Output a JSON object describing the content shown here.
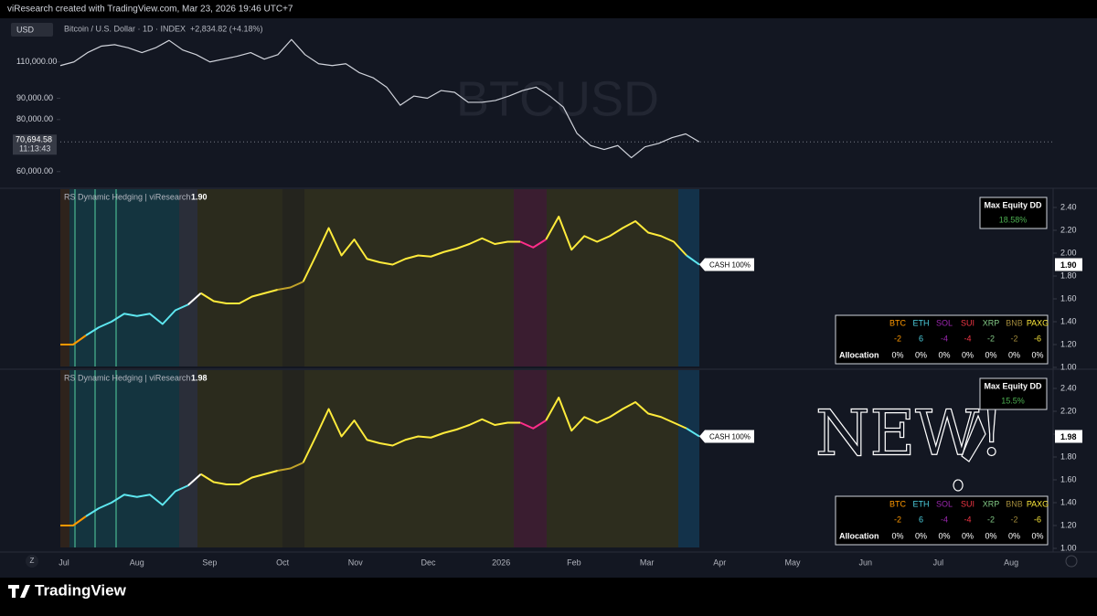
{
  "header": {
    "text": "viResearch created with TradingView.com, Mar 23, 2026 19:46 UTC+7"
  },
  "main_chart": {
    "type": "line",
    "currency": "USD",
    "symbol": "Bitcoin / U.S. Dollar · 1D · INDEX",
    "change": "+2,834.82 (+4.18%)",
    "watermark": "BTCUSD",
    "last_price": "70,694.58",
    "countdown": "11:13:43",
    "log_scale": true,
    "color": "#d1d4dc",
    "ylim": [
      55000,
      140000
    ],
    "yticks": [
      {
        "value": 60000,
        "label": "60,000.00"
      },
      {
        "value": 80000,
        "label": "80,000.00"
      },
      {
        "value": 90000,
        "label": "90,000.00"
      },
      {
        "value": 110000,
        "label": "110,000.00"
      }
    ],
    "values": [
      107800,
      110000,
      115800,
      120000,
      121000,
      118900,
      115800,
      118900,
      123900,
      117500,
      114500,
      110000,
      111700,
      113500,
      115800,
      111700,
      114500,
      124500,
      114500,
      108900,
      107800,
      108900,
      103600,
      100800,
      95700,
      86600,
      91100,
      90000,
      93900,
      93000,
      88000,
      88000,
      88900,
      91100,
      93900,
      95700,
      91100,
      85700,
      74100,
      69300,
      67800,
      69300,
      64800,
      68800,
      70100,
      72400,
      73900,
      70700
    ]
  },
  "panels": [
    {
      "type": "line",
      "title": "RS Dynamic Hedging | viResearch",
      "last": "1.90",
      "label": "CASH 100%",
      "dd_title": "Max Equity DD",
      "dd_value": "18.58%",
      "ylim": [
        0.99,
        2.56
      ],
      "yticks": [
        {
          "value": 1,
          "label": "1.00"
        },
        {
          "value": 1.2,
          "label": "1.20"
        },
        {
          "value": 1.4,
          "label": "1.40"
        },
        {
          "value": 1.6,
          "label": "1.60"
        },
        {
          "value": 1.8,
          "label": "1.80"
        },
        {
          "value": 2,
          "label": "2.00"
        },
        {
          "value": 2.2,
          "label": "2.20"
        },
        {
          "value": 2.4,
          "label": "2.40"
        }
      ],
      "values": [
        1.2,
        1.2,
        1.28,
        1.35,
        1.4,
        1.47,
        1.45,
        1.47,
        1.38,
        1.5,
        1.55,
        1.65,
        1.58,
        1.56,
        1.56,
        1.62,
        1.65,
        1.68,
        1.7,
        1.75,
        1.98,
        2.22,
        1.98,
        2.12,
        1.95,
        1.92,
        1.9,
        1.95,
        1.98,
        1.97,
        2.01,
        2.04,
        2.08,
        2.13,
        2.08,
        2.1,
        2.1,
        2.05,
        2.12,
        2.32,
        2.03,
        2.15,
        2.1,
        2.15,
        2.22,
        2.28,
        2.18,
        2.15,
        2.1,
        1.98,
        1.9
      ],
      "table": {
        "header": [
          "BTC",
          "ETH",
          "SOL",
          "SUI",
          "XRP",
          "BNB",
          "PAXG"
        ],
        "colors": [
          "#ff9800",
          "#4dd0e1",
          "#9c27b0",
          "#f23645",
          "#81c784",
          "#a0893a",
          "#ffeb3b"
        ],
        "scores": [
          -2,
          6,
          -4,
          -4,
          -2,
          -2,
          -6
        ],
        "row_label": "Allocation",
        "allocation": [
          "0%",
          "0%",
          "0%",
          "0%",
          "0%",
          "0%",
          "0%"
        ]
      }
    },
    {
      "type": "line",
      "title": "RS Dynamic Hedging | viResearch",
      "last": "1.98",
      "label": "CASH 100%",
      "dd_title": "Max Equity DD",
      "dd_value": "15.5%",
      "ylim": [
        0.99,
        2.56
      ],
      "yticks": [
        {
          "value": 1,
          "label": "1.00"
        },
        {
          "value": 1.2,
          "label": "1.20"
        },
        {
          "value": 1.4,
          "label": "1.40"
        },
        {
          "value": 1.6,
          "label": "1.60"
        },
        {
          "value": 1.8,
          "label": "1.80"
        },
        {
          "value": 2,
          "label": "2.00"
        },
        {
          "value": 2.2,
          "label": "2.20"
        },
        {
          "value": 2.4,
          "label": "2.40"
        }
      ],
      "values": [
        1.2,
        1.2,
        1.28,
        1.35,
        1.4,
        1.47,
        1.45,
        1.47,
        1.38,
        1.5,
        1.55,
        1.65,
        1.58,
        1.56,
        1.56,
        1.62,
        1.65,
        1.68,
        1.7,
        1.75,
        1.98,
        2.22,
        1.98,
        2.12,
        1.95,
        1.92,
        1.9,
        1.95,
        1.98,
        1.97,
        2.01,
        2.04,
        2.08,
        2.13,
        2.08,
        2.1,
        2.1,
        2.05,
        2.12,
        2.32,
        2.03,
        2.15,
        2.1,
        2.15,
        2.22,
        2.28,
        2.18,
        2.15,
        2.1,
        2.05,
        1.98
      ],
      "table": {
        "header": [
          "BTC",
          "ETH",
          "SOL",
          "SUI",
          "XRP",
          "BNB",
          "PAXG"
        ],
        "colors": [
          "#ff9800",
          "#4dd0e1",
          "#9c27b0",
          "#f23645",
          "#81c784",
          "#a0893a",
          "#ffeb3b"
        ],
        "scores": [
          -2,
          6,
          -4,
          -4,
          -2,
          -2,
          -6
        ],
        "row_label": "Allocation",
        "allocation": [
          "0%",
          "0%",
          "0%",
          "0%",
          "0%",
          "0%",
          "0%"
        ]
      }
    }
  ],
  "x_axis": {
    "labels": [
      "Jul",
      "Aug",
      "Sep",
      "Oct",
      "Nov",
      "Dec",
      "2026",
      "Feb",
      "Mar",
      "Apr",
      "May",
      "Jun",
      "Jul",
      "Aug"
    ]
  },
  "annotation": "NEW!",
  "footer": {
    "zoom": "Z",
    "brand": "TradingView"
  }
}
